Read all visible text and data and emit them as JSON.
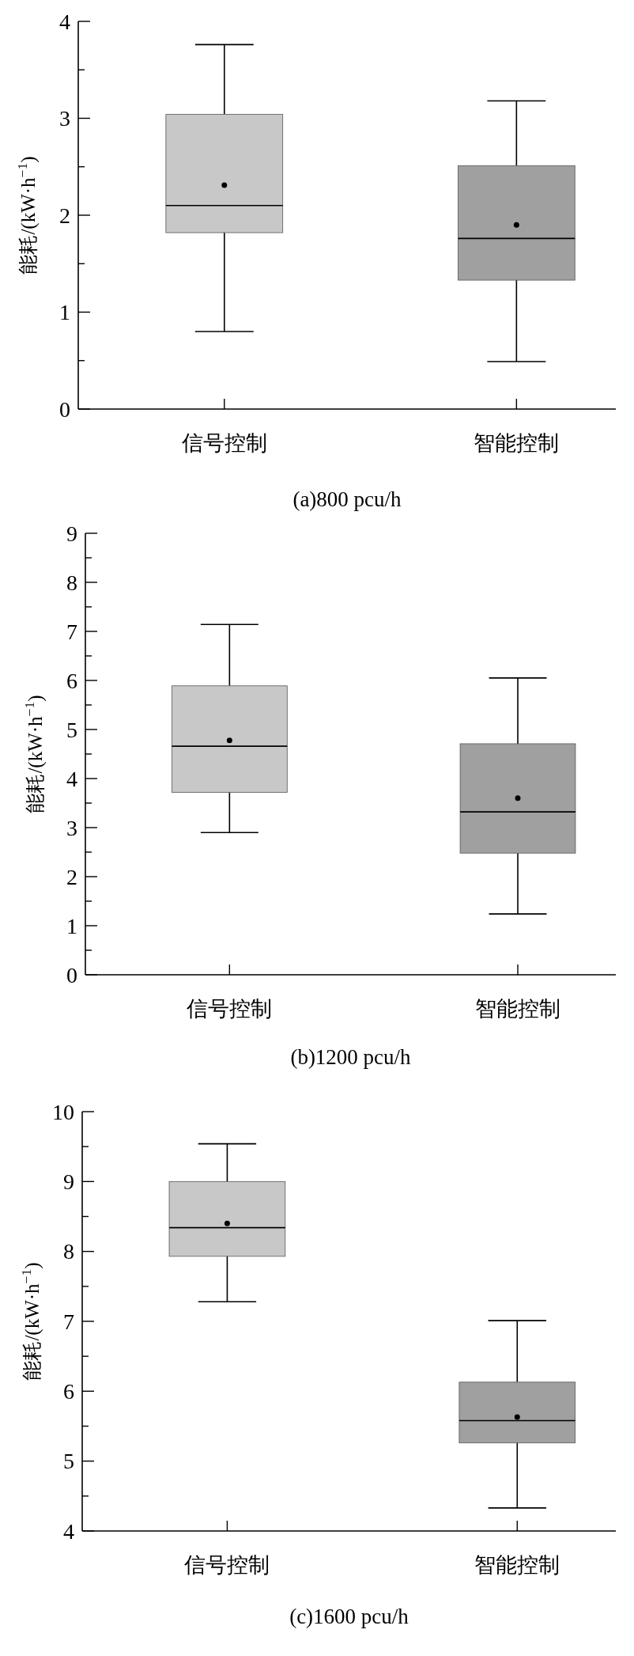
{
  "chart_data": [
    {
      "type": "box",
      "title": "(a)800 pcu/h",
      "ylabel": "能耗/(kW·h$^{−1}$)",
      "categories": [
        "信号控制",
        "智能控制"
      ],
      "colors": [
        "#c8c8c8",
        "#a0a0a0"
      ],
      "ylim": [
        0,
        4
      ],
      "yticks": [
        0,
        {
          "value": 0.5,
          "label": null
        },
        1,
        {
          "value": 1.5,
          "label": null
        },
        2,
        {
          "value": 2.5,
          "label": null
        },
        3,
        {
          "value": 3.5,
          "label": null
        },
        4
      ],
      "boxes": [
        {
          "low": 0.8,
          "q1": 1.82,
          "median": 2.1,
          "q3": 3.04,
          "high": 3.76,
          "mean": 2.31
        },
        {
          "low": 0.49,
          "q1": 1.33,
          "median": 1.76,
          "q3": 2.51,
          "high": 3.18,
          "mean": 1.9
        }
      ]
    },
    {
      "type": "box",
      "title": "(b)1200 pcu/h",
      "ylabel": "能耗/(kW·h$^{−1}$)",
      "categories": [
        "信号控制",
        "智能控制"
      ],
      "colors": [
        "#c8c8c8",
        "#a0a0a0"
      ],
      "ylim": [
        0,
        9
      ],
      "yticks": [
        0,
        {
          "value": 0.5,
          "label": null
        },
        1,
        {
          "value": 1.5,
          "label": null
        },
        2,
        {
          "value": 2.5,
          "label": null
        },
        3,
        {
          "value": 3.5,
          "label": null
        },
        4,
        {
          "value": 4.5,
          "label": null
        },
        5,
        {
          "value": 5.5,
          "label": null
        },
        6,
        {
          "value": 6.5,
          "label": null
        },
        7,
        {
          "value": 7.5,
          "label": null
        },
        8,
        {
          "value": 8.5,
          "label": null
        },
        9
      ],
      "boxes": [
        {
          "low": 2.9,
          "q1": 3.72,
          "median": 4.66,
          "q3": 5.89,
          "high": 7.14,
          "mean": 4.78
        },
        {
          "low": 1.24,
          "q1": 2.48,
          "median": 3.32,
          "q3": 4.71,
          "high": 6.05,
          "mean": 3.6
        }
      ]
    },
    {
      "type": "box",
      "title": "(c)1600 pcu/h",
      "ylabel": "能耗/(kW·h$^{−1}$)",
      "categories": [
        "信号控制",
        "智能控制"
      ],
      "colors": [
        "#c8c8c8",
        "#a0a0a0"
      ],
      "ylim": [
        4,
        10
      ],
      "yticks": [
        4,
        {
          "value": 4.5,
          "label": null
        },
        5,
        {
          "value": 5.5,
          "label": null
        },
        6,
        {
          "value": 6.5,
          "label": null
        },
        7,
        {
          "value": 7.5,
          "label": null
        },
        8,
        {
          "value": 8.5,
          "label": null
        },
        9,
        {
          "value": 9.5,
          "label": null
        },
        10
      ],
      "boxes": [
        {
          "low": 7.28,
          "q1": 7.93,
          "median": 8.34,
          "q3": 9.0,
          "high": 9.54,
          "mean": 8.4
        },
        {
          "low": 4.33,
          "q1": 5.26,
          "median": 5.58,
          "q3": 6.13,
          "high": 7.01,
          "mean": 5.63
        }
      ]
    }
  ]
}
